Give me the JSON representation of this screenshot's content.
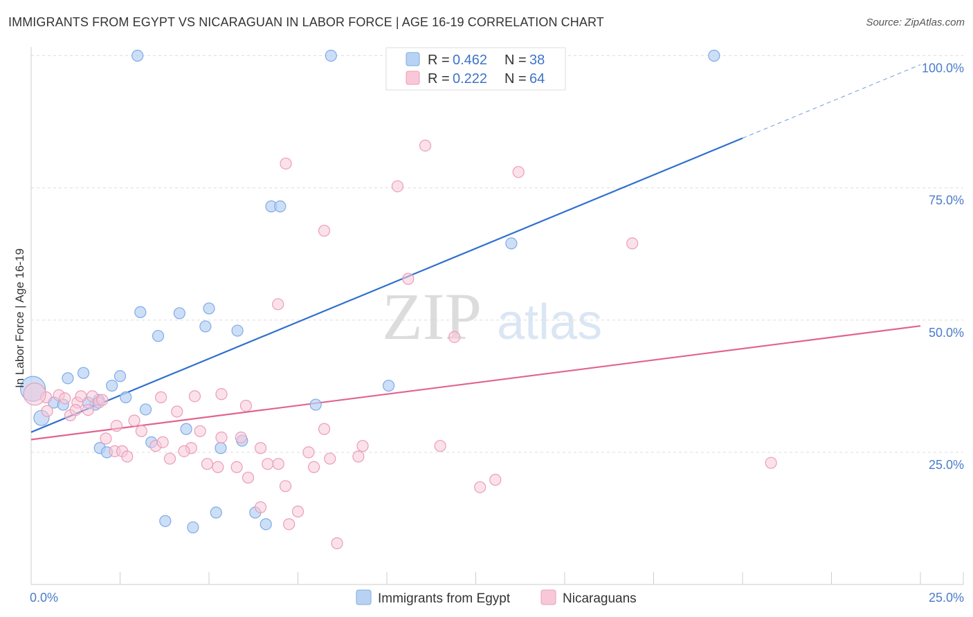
{
  "header": {
    "title": "IMMIGRANTS FROM EGYPT VS NICARAGUAN IN LABOR FORCE | AGE 16-19 CORRELATION CHART",
    "source": "Source: ZipAtlas.com"
  },
  "watermark": {
    "zip": "ZIP",
    "atlas": "atlas"
  },
  "legend": {
    "rows": [
      {
        "r_label": "R =",
        "r_value": "0.462",
        "n_label": "N =",
        "n_value": "38"
      },
      {
        "r_label": "R =",
        "r_value": "0.222",
        "n_label": "N =",
        "n_value": "64"
      }
    ]
  },
  "bottom_legend": {
    "items": [
      "Immigrants from Egypt",
      "Nicaraguans"
    ]
  },
  "chart_data": {
    "type": "scatter",
    "title": "IMMIGRANTS FROM EGYPT VS NICARAGUAN IN LABOR FORCE | AGE 16-19 CORRELATION CHART",
    "xlabel": "",
    "ylabel": "In Labor Force | Age 16-19",
    "xlim": [
      0,
      25
    ],
    "ylim": [
      0,
      100
    ],
    "x_tick_labels": [
      {
        "value": 0,
        "label": "0.0%"
      },
      {
        "value": 25,
        "label": "25.0%"
      }
    ],
    "y_tick_labels": [
      {
        "value": 25,
        "label": "25.0%"
      },
      {
        "value": 50,
        "label": "50.0%"
      },
      {
        "value": 75,
        "label": "75.0%"
      },
      {
        "value": 100,
        "label": "100.0%"
      }
    ],
    "grid": true,
    "colors": {
      "egypt_fill": "#b8d2f3",
      "egypt_stroke": "#7eaae6",
      "egypt_line": "#2f6fce",
      "nica_fill": "#f8c8d8",
      "nica_stroke": "#ec9cb8",
      "nica_line": "#e2628f",
      "grid": "#dddddd",
      "axis": "#cccccc"
    },
    "series": [
      {
        "name": "Immigrants from Egypt",
        "points": [
          [
            2.99,
            100
          ],
          [
            8.43,
            100
          ],
          [
            19.2,
            100
          ],
          [
            6.75,
            71.5
          ],
          [
            7.0,
            71.5
          ],
          [
            13.5,
            64.5
          ],
          [
            3.07,
            51.5
          ],
          [
            4.17,
            51.3
          ],
          [
            5.0,
            52.2
          ],
          [
            4.9,
            48.8
          ],
          [
            5.8,
            48.0
          ],
          [
            3.57,
            47.0
          ],
          [
            1.47,
            40.0
          ],
          [
            1.03,
            39.0
          ],
          [
            2.5,
            39.4
          ],
          [
            2.27,
            37.6
          ],
          [
            10.05,
            37.6
          ],
          [
            2.66,
            35.4
          ],
          [
            0.64,
            34.4
          ],
          [
            0.9,
            34.0
          ],
          [
            1.8,
            34.0
          ],
          [
            1.6,
            34.4
          ],
          [
            1.9,
            34.9
          ],
          [
            8.0,
            34.0
          ],
          [
            3.22,
            33.1
          ],
          [
            0.29,
            31.5
          ],
          [
            4.36,
            29.4
          ],
          [
            3.38,
            26.9
          ],
          [
            1.93,
            25.8
          ],
          [
            2.13,
            25.0
          ],
          [
            5.33,
            25.8
          ],
          [
            5.93,
            27.2
          ],
          [
            3.77,
            12.0
          ],
          [
            4.55,
            10.8
          ],
          [
            5.2,
            13.6
          ],
          [
            6.3,
            13.6
          ],
          [
            6.6,
            11.4
          ],
          [
            0.05,
            37.0
          ]
        ],
        "trend": {
          "x_start": 0,
          "y_start": 28.8,
          "x_end_solid": 20.0,
          "y_end_solid": 84.4,
          "x_end": 25,
          "y_end": 98.3
        }
      },
      {
        "name": "Nicaraguans",
        "points": [
          [
            11.08,
            83.0
          ],
          [
            7.16,
            79.6
          ],
          [
            13.7,
            78.0
          ],
          [
            10.3,
            75.3
          ],
          [
            8.24,
            66.9
          ],
          [
            16.9,
            64.5
          ],
          [
            10.6,
            57.8
          ],
          [
            6.94,
            53.0
          ],
          [
            11.9,
            46.8
          ],
          [
            0.42,
            35.4
          ],
          [
            0.78,
            35.8
          ],
          [
            0.95,
            35.2
          ],
          [
            1.3,
            34.4
          ],
          [
            1.4,
            35.6
          ],
          [
            1.72,
            35.6
          ],
          [
            1.9,
            34.4
          ],
          [
            2.0,
            34.9
          ],
          [
            3.65,
            35.4
          ],
          [
            4.6,
            35.6
          ],
          [
            5.35,
            36.0
          ],
          [
            6.04,
            33.8
          ],
          [
            0.45,
            32.8
          ],
          [
            1.1,
            32.0
          ],
          [
            1.25,
            33.0
          ],
          [
            1.6,
            33.0
          ],
          [
            4.1,
            32.7
          ],
          [
            2.9,
            31.0
          ],
          [
            2.4,
            30.0
          ],
          [
            3.1,
            29.0
          ],
          [
            4.75,
            29.0
          ],
          [
            8.24,
            29.4
          ],
          [
            2.1,
            27.6
          ],
          [
            5.35,
            27.8
          ],
          [
            5.9,
            27.8
          ],
          [
            3.5,
            26.2
          ],
          [
            3.7,
            26.9
          ],
          [
            4.5,
            25.8
          ],
          [
            6.45,
            25.8
          ],
          [
            2.35,
            25.2
          ],
          [
            2.56,
            25.2
          ],
          [
            2.7,
            24.2
          ],
          [
            4.3,
            25.2
          ],
          [
            7.8,
            25.0
          ],
          [
            11.5,
            26.2
          ],
          [
            9.32,
            26.2
          ],
          [
            9.2,
            24.2
          ],
          [
            8.4,
            23.8
          ],
          [
            4.95,
            22.8
          ],
          [
            5.25,
            22.2
          ],
          [
            5.78,
            22.2
          ],
          [
            6.65,
            22.8
          ],
          [
            6.95,
            22.8
          ],
          [
            7.95,
            22.2
          ],
          [
            3.9,
            23.8
          ],
          [
            6.1,
            20.2
          ],
          [
            7.15,
            18.6
          ],
          [
            13.05,
            19.8
          ],
          [
            12.62,
            18.4
          ],
          [
            6.45,
            14.6
          ],
          [
            7.5,
            13.8
          ],
          [
            7.25,
            11.4
          ],
          [
            8.6,
            7.8
          ],
          [
            20.8,
            23.0
          ],
          [
            0.1,
            36.0
          ]
        ],
        "trend": {
          "x_start": 0,
          "y_start": 27.4,
          "x_end": 25,
          "y_end": 48.9
        }
      }
    ]
  }
}
